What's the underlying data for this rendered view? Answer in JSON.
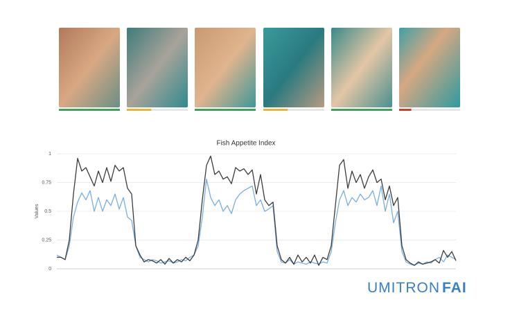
{
  "thumbnails": [
    {
      "level": 100,
      "color": "#3aa655"
    },
    {
      "level": 40,
      "color": "#f0b030"
    },
    {
      "level": 100,
      "color": "#3aa655"
    },
    {
      "level": 40,
      "color": "#f0b030"
    },
    {
      "level": 100,
      "color": "#3aa655"
    },
    {
      "level": 20,
      "color": "#d83a2a"
    }
  ],
  "logo": {
    "brand": "UMITRON",
    "product": "FAI"
  },
  "chart_data": {
    "type": "line",
    "title": "Fish Appetite Index",
    "y_label": "Values",
    "ylim": [
      0,
      1
    ],
    "yticks": [
      0,
      0.25,
      0.5,
      0.75,
      1
    ],
    "grid": true,
    "series": [
      {
        "color": "#3b3b3b",
        "values": [
          0.1,
          0.1,
          0.08,
          0.25,
          0.65,
          0.96,
          0.85,
          0.88,
          0.8,
          0.72,
          0.85,
          0.75,
          0.88,
          0.76,
          0.9,
          0.85,
          0.88,
          0.7,
          0.65,
          0.2,
          0.12,
          0.06,
          0.08,
          0.07,
          0.05,
          0.08,
          0.04,
          0.09,
          0.05,
          0.08,
          0.06,
          0.1,
          0.07,
          0.12,
          0.25,
          0.6,
          0.9,
          0.98,
          0.82,
          0.85,
          0.78,
          0.8,
          0.74,
          0.88,
          0.85,
          0.87,
          0.82,
          0.86,
          0.65,
          0.82,
          0.6,
          0.55,
          0.58,
          0.2,
          0.08,
          0.05,
          0.1,
          0.04,
          0.12,
          0.06,
          0.1,
          0.05,
          0.12,
          0.03,
          0.1,
          0.08,
          0.2,
          0.55,
          0.9,
          0.95,
          0.7,
          0.85,
          0.75,
          0.82,
          0.7,
          0.8,
          0.86,
          0.75,
          0.78,
          0.6,
          0.72,
          0.55,
          0.62,
          0.2,
          0.08,
          0.05,
          0.03,
          0.06,
          0.04,
          0.05,
          0.06,
          0.08,
          0.05,
          0.16,
          0.1,
          0.15,
          0.07
        ]
      },
      {
        "color": "#7aaee0",
        "values": [
          0.12,
          0.1,
          0.08,
          0.2,
          0.45,
          0.58,
          0.66,
          0.6,
          0.68,
          0.5,
          0.62,
          0.5,
          0.6,
          0.55,
          0.65,
          0.52,
          0.62,
          0.45,
          0.42,
          0.2,
          0.1,
          0.08,
          0.06,
          0.08,
          0.07,
          0.05,
          0.06,
          0.07,
          0.05,
          0.06,
          0.08,
          0.07,
          0.1,
          0.12,
          0.2,
          0.45,
          0.78,
          0.62,
          0.55,
          0.6,
          0.5,
          0.55,
          0.48,
          0.6,
          0.65,
          0.68,
          0.7,
          0.72,
          0.55,
          0.6,
          0.5,
          0.52,
          0.55,
          0.15,
          0.06,
          0.05,
          0.08,
          0.04,
          0.06,
          0.05,
          0.04,
          0.06,
          0.05,
          0.04,
          0.06,
          0.05,
          0.15,
          0.4,
          0.6,
          0.68,
          0.55,
          0.62,
          0.58,
          0.65,
          0.6,
          0.62,
          0.68,
          0.55,
          0.72,
          0.5,
          0.65,
          0.4,
          0.5,
          0.15,
          0.06,
          0.04,
          0.03,
          0.05,
          0.04,
          0.06,
          0.05,
          0.08,
          0.1,
          0.06,
          0.12,
          0.1,
          0.08
        ]
      }
    ]
  }
}
